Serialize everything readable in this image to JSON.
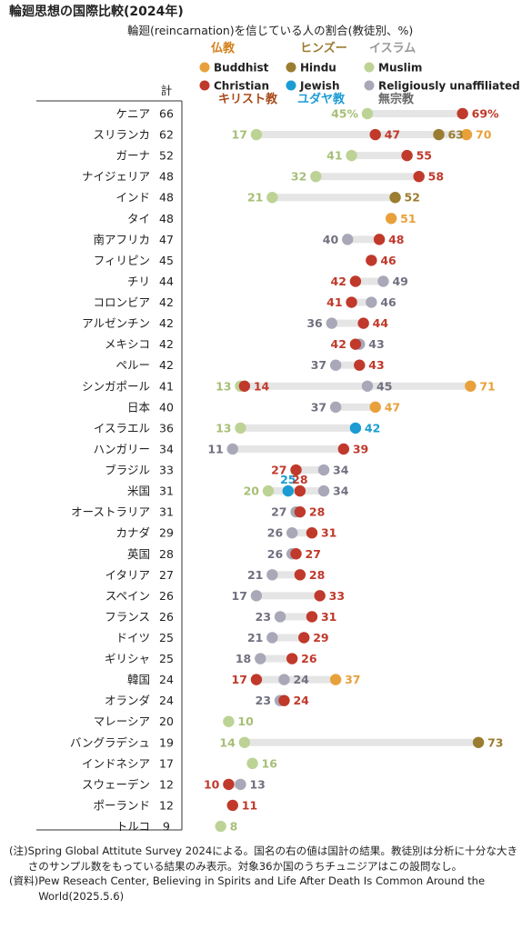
{
  "title": "輪廻思想の国際比較(2024年)",
  "subtitle": "輪廻(reincarnation)を信じている人の割合(教徒別、%)",
  "total_header": "計",
  "colors": {
    "Buddhist": "#e8a13a",
    "Hindu": "#9a7d30",
    "Muslim": "#bdd396",
    "Christian": "#c0392b",
    "Jewish": "#1a9cd3",
    "Religiously unaffiliated": "#a8a8b8",
    "range_bar": "#e5e5e5",
    "legend_ja_buddhist": "#d4801a",
    "legend_ja_hindu": "#9a7d30",
    "legend_ja_muslim": "#999999",
    "legend_ja_christian": "#a84a1a",
    "legend_ja_jewish": "#1a9cd3",
    "legend_ja_unaffiliated": "#666666"
  },
  "legend": [
    {
      "key": "Buddhist",
      "en": "Buddhist",
      "ja": "仏教"
    },
    {
      "key": "Hindu",
      "en": "Hindu",
      "ja": "ヒンズー"
    },
    {
      "key": "Muslim",
      "en": "Muslim",
      "ja": "イスラム"
    },
    {
      "key": "Christian",
      "en": "Christian",
      "ja": "キリスト教"
    },
    {
      "key": "Jewish",
      "en": "Jewish",
      "ja": "ユダヤ教"
    },
    {
      "key": "Religiously unaffiliated",
      "en": "Religiously unaffiliated",
      "ja": "無宗教"
    }
  ],
  "chart_data": {
    "type": "scatter",
    "title": "輪廻思想の国際比較(2024年)",
    "subtitle": "輪廻(reincarnation)を信じている人の割合(教徒別、%)",
    "series_names": [
      "Buddhist",
      "Hindu",
      "Muslim",
      "Christian",
      "Jewish",
      "Religiously unaffiliated"
    ],
    "rows": [
      {
        "country": "ケニア",
        "total": 66,
        "values": {
          "Muslim": 45,
          "Christian": 69
        },
        "labels": {
          "Muslim": "45%",
          "Christian": "69%"
        }
      },
      {
        "country": "スリランカ",
        "total": 62,
        "values": {
          "Muslim": 17,
          "Christian": 47,
          "Hindu": 63,
          "Buddhist": 70
        }
      },
      {
        "country": "ガーナ",
        "total": 52,
        "values": {
          "Muslim": 41,
          "Christian": 55
        }
      },
      {
        "country": "ナイジェリア",
        "total": 48,
        "values": {
          "Muslim": 32,
          "Christian": 58
        }
      },
      {
        "country": "インド",
        "total": 48,
        "values": {
          "Muslim": 21,
          "Hindu": 52
        }
      },
      {
        "country": "タイ",
        "total": 48,
        "values": {
          "Buddhist": 51
        }
      },
      {
        "country": "南アフリカ",
        "total": 47,
        "values": {
          "Religiously unaffiliated": 40,
          "Christian": 48
        }
      },
      {
        "country": "フィリピン",
        "total": 45,
        "values": {
          "Christian": 46
        }
      },
      {
        "country": "チリ",
        "total": 44,
        "values": {
          "Christian": 42,
          "Religiously unaffiliated": 49
        }
      },
      {
        "country": "コロンビア",
        "total": 42,
        "values": {
          "Christian": 41,
          "Religiously unaffiliated": 46
        }
      },
      {
        "country": "アルゼンチン",
        "total": 42,
        "values": {
          "Religiously unaffiliated": 36,
          "Christian": 44
        }
      },
      {
        "country": "メキシコ",
        "total": 42,
        "values": {
          "Christian": 42,
          "Religiously unaffiliated": 43
        }
      },
      {
        "country": "ペルー",
        "total": 42,
        "values": {
          "Religiously unaffiliated": 37,
          "Christian": 43
        }
      },
      {
        "country": "シンガポール",
        "total": 41,
        "values": {
          "Muslim": 13,
          "Christian": 14,
          "Religiously unaffiliated": 45,
          "Buddhist": 71
        }
      },
      {
        "country": "日本",
        "total": 40,
        "values": {
          "Religiously unaffiliated": 37,
          "Buddhist": 47
        }
      },
      {
        "country": "イスラエル",
        "total": 36,
        "values": {
          "Muslim": 13,
          "Jewish": 42
        }
      },
      {
        "country": "ハンガリー",
        "total": 34,
        "values": {
          "Religiously unaffiliated": 11,
          "Christian": 39
        }
      },
      {
        "country": "ブラジル",
        "total": 33,
        "values": {
          "Christian": 27,
          "Religiously unaffiliated": 34
        }
      },
      {
        "country": "米国",
        "total": 31,
        "values": {
          "Muslim": 20,
          "Jewish": 25,
          "Christian": 28,
          "Religiously unaffiliated": 34
        }
      },
      {
        "country": "オーストラリア",
        "total": 31,
        "values": {
          "Religiously unaffiliated": 27,
          "Christian": 28
        }
      },
      {
        "country": "カナダ",
        "total": 29,
        "values": {
          "Religiously unaffiliated": 26,
          "Christian": 31
        }
      },
      {
        "country": "英国",
        "total": 28,
        "values": {
          "Religiously unaffiliated": 26,
          "Christian": 27
        }
      },
      {
        "country": "イタリア",
        "total": 27,
        "values": {
          "Religiously unaffiliated": 21,
          "Christian": 28
        }
      },
      {
        "country": "スペイン",
        "total": 26,
        "values": {
          "Religiously unaffiliated": 17,
          "Christian": 33
        }
      },
      {
        "country": "フランス",
        "total": 26,
        "values": {
          "Religiously unaffiliated": 23,
          "Christian": 31
        }
      },
      {
        "country": "ドイツ",
        "total": 25,
        "values": {
          "Religiously unaffiliated": 21,
          "Christian": 29
        }
      },
      {
        "country": "ギリシャ",
        "total": 25,
        "values": {
          "Religiously unaffiliated": 18,
          "Christian": 26
        }
      },
      {
        "country": "韓国",
        "total": 24,
        "values": {
          "Christian": 17,
          "Religiously unaffiliated": 24,
          "Buddhist": 37
        }
      },
      {
        "country": "オランダ",
        "total": 24,
        "values": {
          "Religiously unaffiliated": 23,
          "Christian": 24
        }
      },
      {
        "country": "マレーシア",
        "total": 20,
        "values": {
          "Muslim": 10
        }
      },
      {
        "country": "バングラデシュ",
        "total": 19,
        "values": {
          "Muslim": 14,
          "Hindu": 73
        }
      },
      {
        "country": "インドネシア",
        "total": 17,
        "values": {
          "Muslim": 16
        }
      },
      {
        "country": "スウェーデン",
        "total": 12,
        "values": {
          "Christian": 10,
          "Religiously unaffiliated": 13
        }
      },
      {
        "country": "ポーランド",
        "total": 12,
        "values": {
          "Christian": 11
        }
      },
      {
        "country": "トルコ",
        "total": 9,
        "values": {
          "Muslim": 8
        }
      }
    ]
  },
  "notes": {
    "note_tag": "(注)",
    "note_text": "Spring Global Attitute Survey 2024による。国名の右の値は国計の結果。教徒別は分析に十分な大きさのサンプル数をもっている結果のみ表示。対象36か国のうちチュニジアはこの設問なし。",
    "source_tag": "(資料)",
    "source_text": "Pew Reseach Center, Believing in Spirits and Life After Death Is Common Around the World(2025.5.6)"
  }
}
